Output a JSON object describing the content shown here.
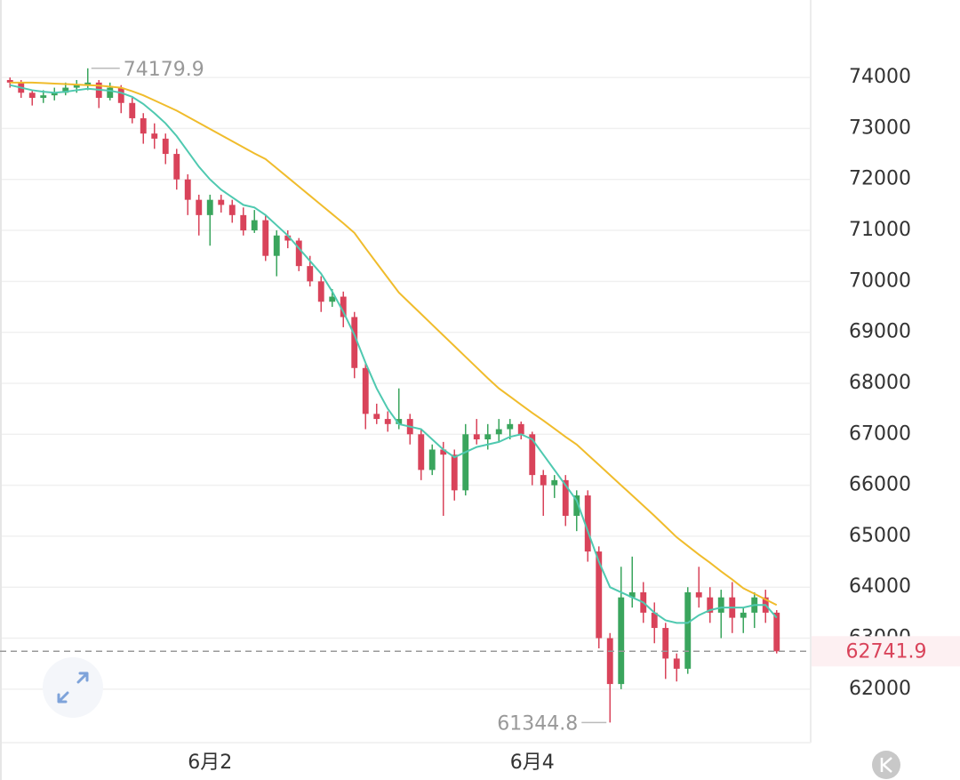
{
  "chart_data": {
    "type": "candlestick",
    "categories": [
      null,
      null,
      null,
      null,
      null,
      null,
      null,
      null,
      null,
      null,
      null,
      null,
      null,
      null,
      null,
      null,
      null,
      null,
      "6月2",
      null,
      null,
      null,
      null,
      null,
      null,
      null,
      null,
      null,
      null,
      null,
      null,
      null,
      null,
      null,
      null,
      null,
      null,
      null,
      null,
      null,
      null,
      null,
      null,
      null,
      null,
      null,
      null,
      "6月4",
      null,
      null,
      null,
      null,
      null,
      null,
      null,
      null,
      null,
      null,
      null,
      null,
      null,
      null,
      null,
      null,
      null,
      null,
      null,
      null,
      null,
      null
    ],
    "open": [
      73950,
      73900,
      73700,
      73600,
      73650,
      73700,
      73800,
      73850,
      73900,
      73600,
      73800,
      73500,
      73200,
      72900,
      72800,
      72500,
      72000,
      71600,
      71300,
      71600,
      71500,
      71300,
      71000,
      71200,
      70500,
      70900,
      70800,
      70300,
      70000,
      69600,
      69700,
      69300,
      68300,
      67400,
      67300,
      67200,
      67300,
      67000,
      66300,
      66700,
      66600,
      65900,
      67000,
      66900,
      67000,
      67100,
      67200,
      67000,
      66200,
      66000,
      66100,
      65400,
      65800,
      64700,
      63000,
      62100,
      63800,
      63900,
      63500,
      63200,
      62600,
      62400,
      63900,
      63800,
      63500,
      63800,
      63400,
      63500,
      63800,
      63500
    ],
    "high": [
      74000,
      73950,
      73750,
      73750,
      73800,
      73900,
      73950,
      74179.9,
      73950,
      73900,
      73850,
      73600,
      73300,
      73100,
      72900,
      72600,
      72100,
      71700,
      71700,
      71700,
      71600,
      71450,
      71400,
      71300,
      71000,
      71000,
      70850,
      70500,
      70100,
      69850,
      69800,
      69400,
      68400,
      67600,
      67450,
      67900,
      67400,
      67100,
      66800,
      66850,
      66700,
      67200,
      67300,
      67200,
      67300,
      67300,
      67250,
      67050,
      66300,
      66200,
      66200,
      65900,
      65900,
      64800,
      63100,
      64400,
      64600,
      64100,
      63700,
      63300,
      62700,
      64000,
      64400,
      64000,
      63950,
      64100,
      63600,
      63900,
      63950,
      63550
    ],
    "low": [
      73800,
      73600,
      73450,
      73500,
      73550,
      73650,
      73700,
      73750,
      73400,
      73550,
      73300,
      73100,
      72700,
      72600,
      72300,
      71800,
      71300,
      70900,
      70700,
      71350,
      71150,
      70900,
      70950,
      70400,
      70100,
      70650,
      70200,
      69900,
      69400,
      69500,
      69100,
      68100,
      67100,
      67200,
      67050,
      67100,
      66800,
      66100,
      66200,
      65400,
      65700,
      65800,
      66800,
      66700,
      66850,
      66900,
      66900,
      66000,
      65400,
      65750,
      65200,
      65100,
      64500,
      62800,
      61344.8,
      62000,
      63600,
      63300,
      62900,
      62200,
      62150,
      62300,
      63600,
      63300,
      63000,
      63100,
      63100,
      63200,
      63300,
      62700
    ],
    "close": [
      73900,
      73700,
      73600,
      73650,
      73700,
      73800,
      73850,
      73900,
      73600,
      73800,
      73500,
      73200,
      72900,
      72800,
      72500,
      72000,
      71600,
      71300,
      71600,
      71500,
      71300,
      71000,
      71200,
      70500,
      70900,
      70800,
      70300,
      70000,
      69600,
      69700,
      69300,
      68300,
      67400,
      67300,
      67200,
      67300,
      67000,
      66300,
      66700,
      66600,
      65900,
      67000,
      66900,
      67000,
      67100,
      67200,
      67000,
      66200,
      66000,
      66100,
      65400,
      65800,
      64700,
      63000,
      62100,
      63800,
      63900,
      63500,
      63200,
      62600,
      62400,
      63900,
      63800,
      63500,
      63800,
      63400,
      63500,
      63800,
      63500,
      62741.9
    ],
    "up_color": "#3aa55d",
    "down_color": "#d9435a",
    "series": [
      {
        "color": "#4fc9b0",
        "values": [
          73850,
          73800,
          73750,
          73720,
          73700,
          73720,
          73750,
          73780,
          73760,
          73740,
          73700,
          73620,
          73480,
          73300,
          73100,
          72850,
          72550,
          72250,
          72000,
          71800,
          71650,
          71500,
          71450,
          71300,
          71100,
          70900,
          70650,
          70400,
          70150,
          69800,
          69400,
          68950,
          68400,
          67900,
          67500,
          67200,
          67150,
          67100,
          66900,
          66700,
          66550,
          66650,
          66750,
          66800,
          66850,
          66950,
          67000,
          66900,
          66600,
          66300,
          66000,
          65700,
          65100,
          64500,
          64000,
          63900,
          63800,
          63700,
          63500,
          63350,
          63300,
          63300,
          63450,
          63550,
          63600,
          63600,
          63600,
          63650,
          63650,
          63400
        ]
      },
      {
        "color": "#f0bc2c",
        "values": [
          73900,
          73900,
          73900,
          73890,
          73880,
          73870,
          73860,
          73850,
          73840,
          73820,
          73800,
          73730,
          73650,
          73550,
          73450,
          73350,
          73230,
          73110,
          72990,
          72870,
          72750,
          72630,
          72510,
          72400,
          72220,
          72040,
          71860,
          71680,
          71500,
          71320,
          71140,
          70950,
          70650,
          70360,
          70070,
          69780,
          69570,
          69360,
          69150,
          68940,
          68730,
          68520,
          68310,
          68100,
          67900,
          67740,
          67580,
          67420,
          67270,
          67110,
          66950,
          66800,
          66600,
          66400,
          66200,
          66000,
          65800,
          65600,
          65400,
          65190,
          64980,
          64810,
          64640,
          64480,
          64310,
          64150,
          63980,
          63870,
          63760,
          63650
        ]
      }
    ],
    "ylim": [
      60950,
      75520
    ],
    "yticks": [
      62000,
      63000,
      64000,
      65000,
      66000,
      67000,
      68000,
      69000,
      70000,
      71000,
      72000,
      73000,
      74000
    ],
    "grid": true
  }
}
